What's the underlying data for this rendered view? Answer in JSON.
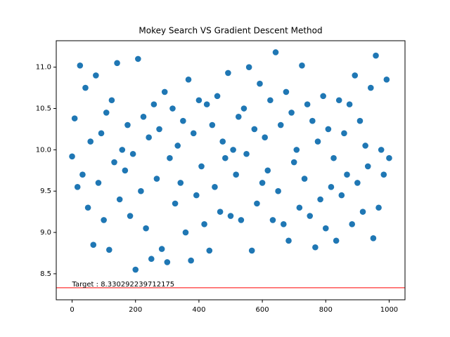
{
  "chart_data": {
    "type": "scatter",
    "title": "Mokey Search VS Gradient Descent Method",
    "color": "#1f77b4",
    "x": [
      0,
      8,
      17,
      25,
      33,
      42,
      50,
      58,
      67,
      75,
      83,
      92,
      100,
      108,
      117,
      125,
      133,
      142,
      150,
      158,
      167,
      175,
      183,
      192,
      200,
      208,
      217,
      225,
      233,
      242,
      250,
      258,
      267,
      275,
      283,
      292,
      300,
      308,
      317,
      325,
      333,
      342,
      350,
      358,
      367,
      375,
      383,
      392,
      400,
      408,
      417,
      425,
      433,
      442,
      450,
      458,
      467,
      475,
      483,
      492,
      500,
      508,
      517,
      525,
      533,
      542,
      550,
      558,
      567,
      575,
      583,
      592,
      600,
      608,
      617,
      625,
      633,
      642,
      650,
      658,
      667,
      675,
      683,
      692,
      700,
      708,
      717,
      725,
      733,
      742,
      750,
      758,
      767,
      775,
      783,
      792,
      800,
      808,
      817,
      825,
      833,
      842,
      850,
      858,
      867,
      875,
      883,
      892,
      900,
      908,
      917,
      925,
      933,
      942,
      950,
      958,
      967,
      975,
      983,
      992,
      1000
    ],
    "values": [
      9.92,
      10.38,
      9.55,
      11.02,
      9.7,
      10.75,
      9.3,
      10.1,
      8.85,
      10.9,
      9.6,
      10.2,
      9.15,
      10.45,
      8.79,
      10.6,
      9.85,
      11.05,
      9.4,
      10.0,
      9.75,
      10.3,
      9.2,
      9.95,
      8.55,
      11.1,
      9.5,
      10.4,
      9.05,
      10.15,
      8.68,
      10.55,
      9.65,
      10.25,
      8.8,
      10.7,
      8.64,
      9.9,
      10.5,
      9.35,
      10.05,
      9.6,
      10.35,
      9.0,
      10.85,
      8.66,
      10.2,
      9.45,
      10.6,
      9.8,
      9.1,
      10.55,
      8.78,
      10.3,
      9.55,
      10.65,
      9.25,
      10.1,
      9.9,
      10.93,
      9.2,
      10.0,
      9.7,
      10.4,
      9.15,
      10.5,
      9.95,
      11.0,
      8.78,
      10.25,
      9.35,
      10.8,
      9.6,
      10.15,
      9.75,
      10.6,
      9.15,
      11.18,
      9.5,
      10.3,
      9.1,
      10.7,
      8.9,
      10.45,
      9.85,
      10.0,
      9.3,
      11.02,
      9.65,
      10.55,
      9.2,
      10.35,
      8.82,
      10.1,
      9.4,
      10.65,
      9.05,
      10.25,
      9.55,
      9.9,
      8.9,
      10.6,
      9.45,
      10.2,
      9.7,
      10.55,
      9.1,
      10.9,
      9.6,
      10.35,
      9.25,
      10.05,
      9.8,
      10.75,
      8.93,
      11.14,
      9.3,
      10.0,
      9.7,
      10.85,
      9.9
    ],
    "xlim": [
      -50,
      1050
    ],
    "ylim": [
      8.185,
      11.32
    ],
    "xticks": [
      0,
      200,
      400,
      600,
      800,
      1000
    ],
    "yticks": [
      8.5,
      {
        "value": 9,
        "label": "9.0"
      },
      9.5,
      {
        "value": 10,
        "label": "10.0"
      },
      10.5,
      {
        "value": 11,
        "label": "11.0"
      }
    ],
    "target": {
      "value": 8.330292239712175,
      "label": "Target : 8.330292239712175",
      "color": "red"
    }
  }
}
